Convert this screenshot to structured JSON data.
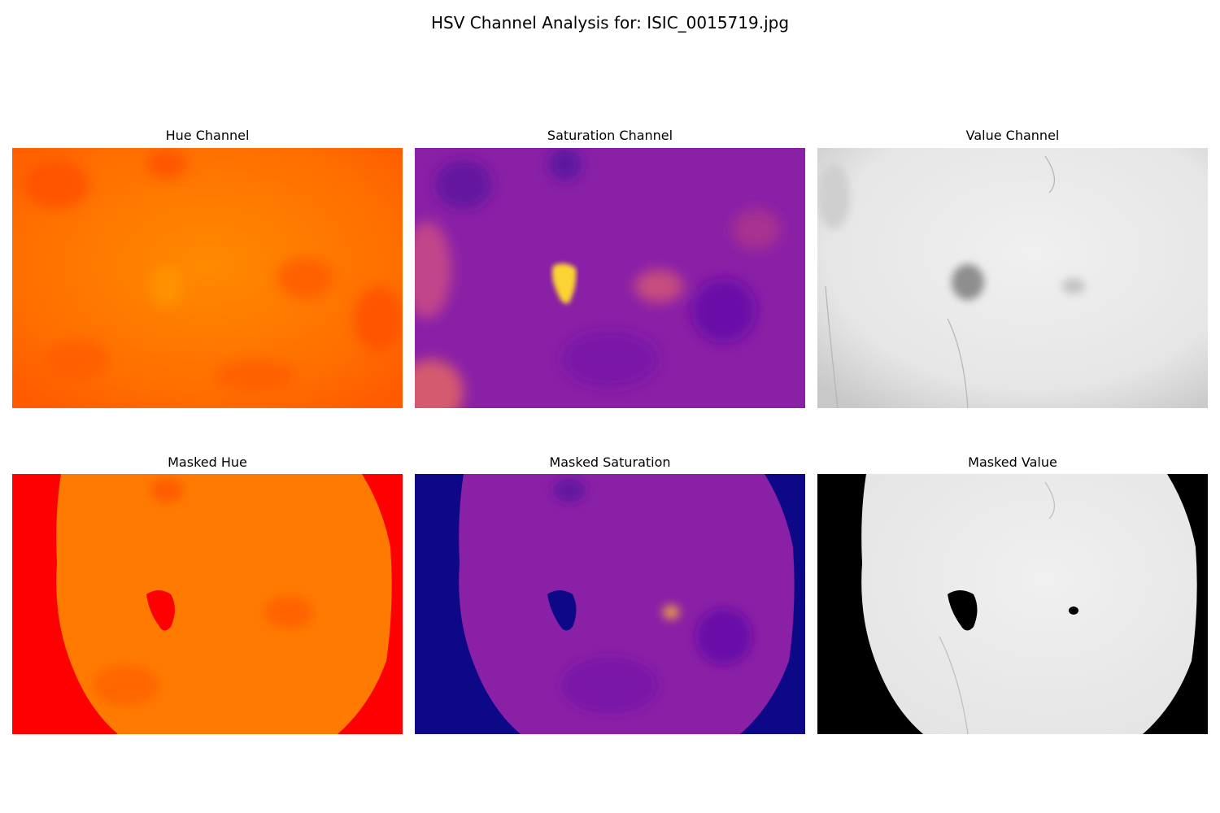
{
  "figure": {
    "title": "HSV Channel Analysis for: ISIC_0015719.jpg"
  },
  "panels": [
    {
      "title": "Hue Channel"
    },
    {
      "title": "Saturation Channel"
    },
    {
      "title": "Value Channel"
    },
    {
      "title": "Masked Hue"
    },
    {
      "title": "Masked Saturation"
    },
    {
      "title": "Masked Value"
    }
  ],
  "colors": {
    "hue_base": "#ff7a00",
    "hue_dark": "#ff4d00",
    "hue_mask_fill": "#ff0000",
    "sat_base": "#8a1fa3",
    "sat_bright": "#fde33a",
    "sat_mask_fill": "#0d0887",
    "value_base": "#ededed",
    "value_lesion": "#8a8a8a",
    "value_mask_fill": "#000000"
  }
}
